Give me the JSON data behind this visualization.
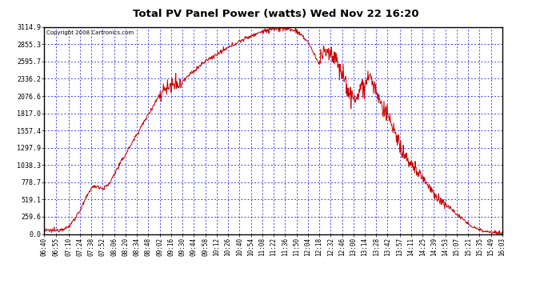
{
  "title": "Total PV Panel Power (watts) Wed Nov 22 16:20",
  "copyright_text": "Copyright 2008 Cartronics.com",
  "background_color": "#ffffff",
  "plot_bg_color": "#ffffff",
  "grid_color": "#0000ff",
  "line_color": "#cc0000",
  "y_ticks": [
    0.0,
    259.6,
    519.1,
    778.7,
    1038.3,
    1297.9,
    1557.4,
    1817.0,
    2076.6,
    2336.2,
    2595.7,
    2855.3,
    3114.9
  ],
  "y_max": 3114.9,
  "x_labels": [
    "06:40",
    "06:55",
    "07:10",
    "07:24",
    "07:38",
    "07:52",
    "08:06",
    "08:20",
    "08:34",
    "08:48",
    "09:02",
    "09:16",
    "09:30",
    "09:44",
    "09:58",
    "10:12",
    "10:26",
    "10:40",
    "10:54",
    "11:08",
    "11:22",
    "11:36",
    "11:50",
    "12:04",
    "12:18",
    "12:32",
    "12:46",
    "13:00",
    "13:14",
    "13:28",
    "13:42",
    "13:57",
    "14:11",
    "14:25",
    "14:39",
    "14:53",
    "15:07",
    "15:21",
    "15:35",
    "15:49",
    "16:03"
  ]
}
